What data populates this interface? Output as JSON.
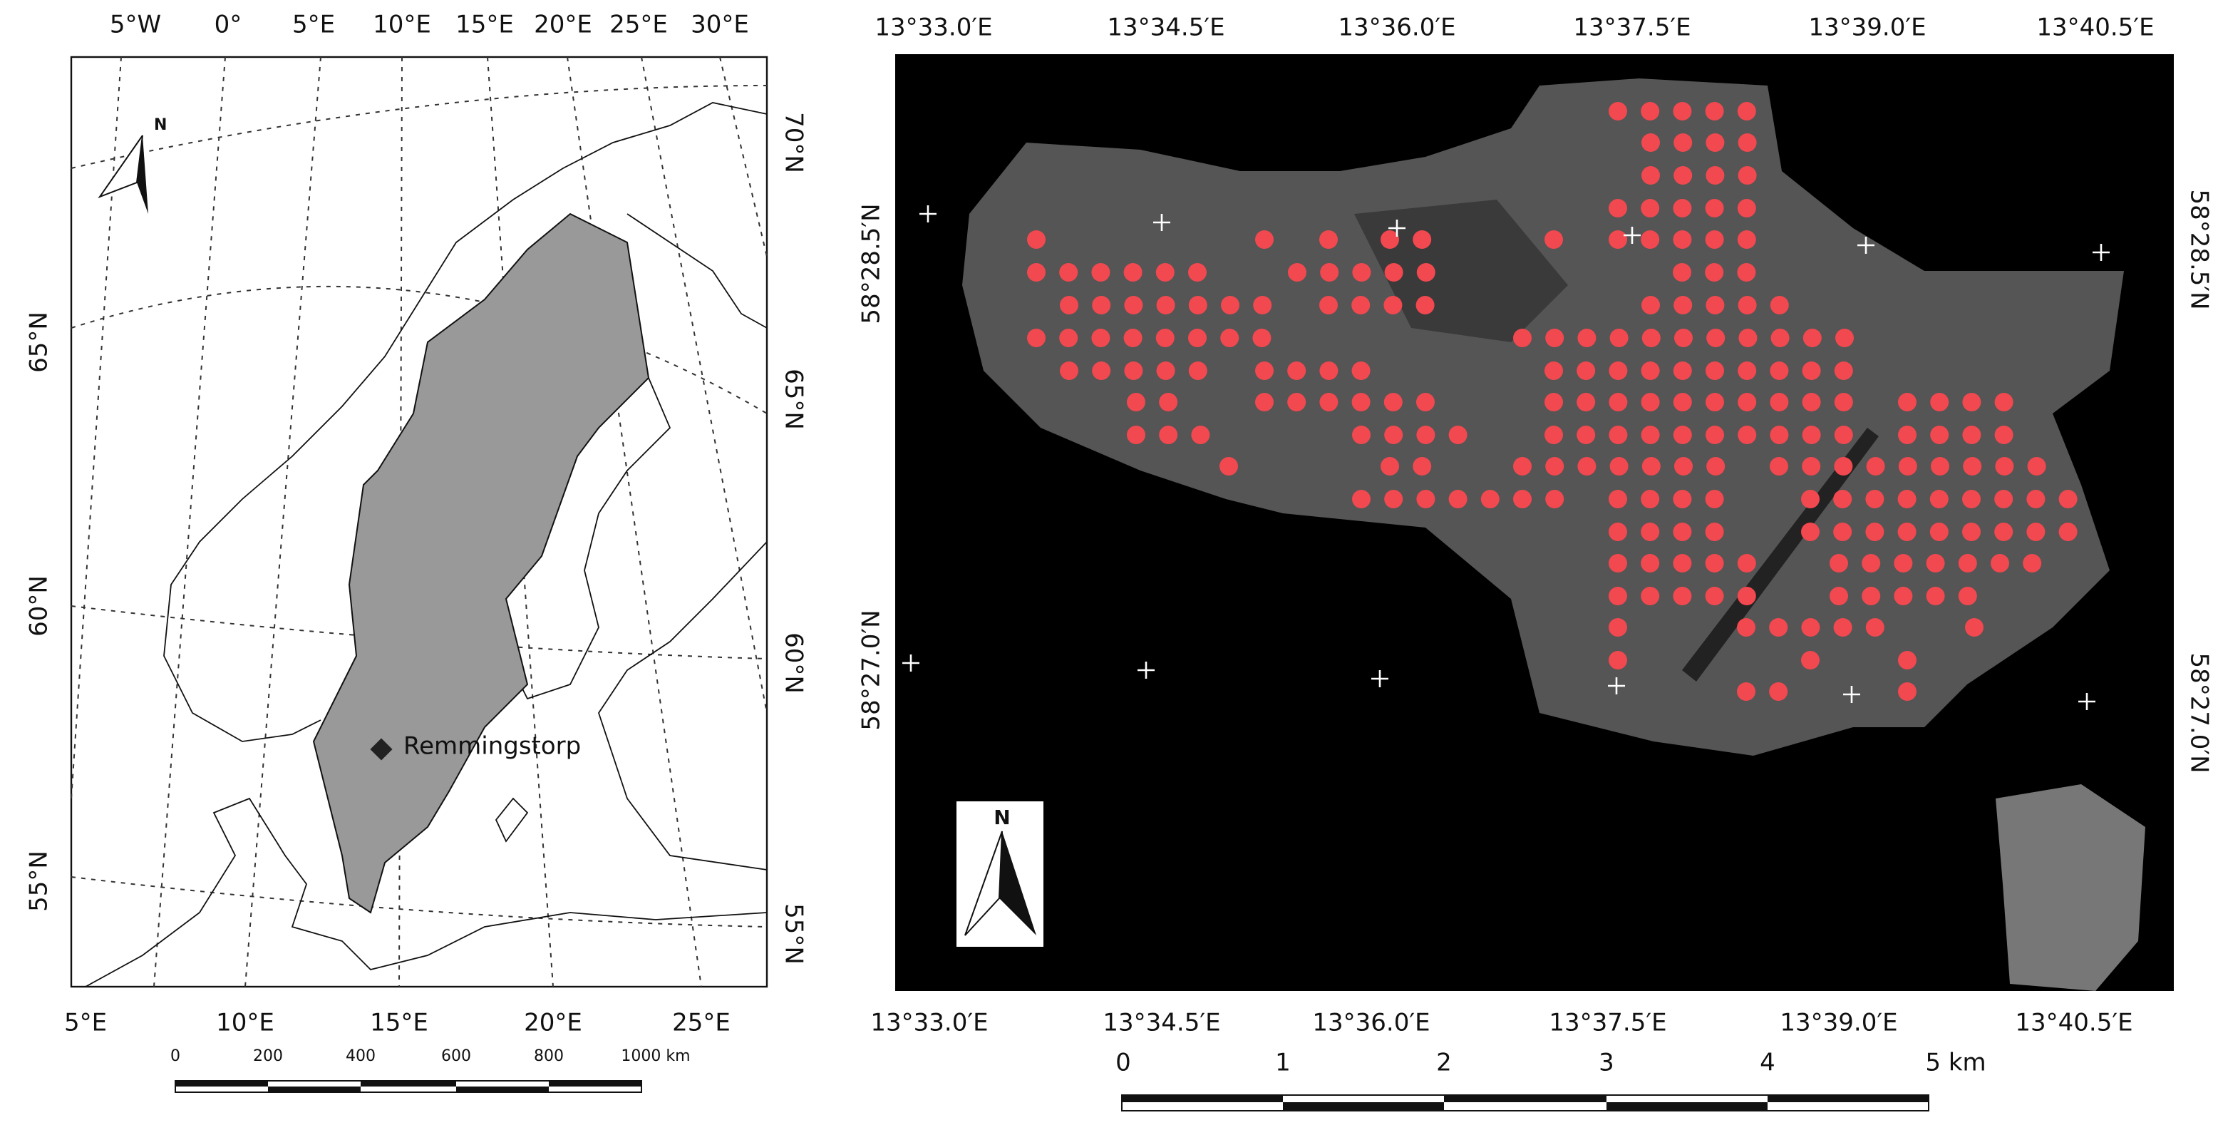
{
  "overview_map": {
    "top_labels": [
      "5°W",
      "0°",
      "5°E",
      "10°E",
      "15°E",
      "20°E",
      "25°E",
      "30°E"
    ],
    "bottom_labels": [
      "5°E",
      "10°E",
      "15°E",
      "20°E",
      "25°E"
    ],
    "left_labels": [
      "65°N",
      "60°N",
      "55°N"
    ],
    "right_labels": [
      "70°N",
      "65°N",
      "60°N",
      "55°N"
    ],
    "site_label": "Remmingstorp",
    "north_label": "N",
    "scale_labels": [
      "0",
      "200",
      "400",
      "600",
      "800",
      "1000 km"
    ]
  },
  "site_map": {
    "top_labels": [
      "13°33.0′E",
      "13°34.5′E",
      "13°36.0′E",
      "13°37.5′E",
      "13°39.0′E",
      "13°40.5′E"
    ],
    "bottom_labels": [
      "13°33.0′E",
      "13°34.5′E",
      "13°36.0′E",
      "13°37.5′E",
      "13°39.0′E",
      "13°40.5′E"
    ],
    "left_labels": [
      "58°28.5′N",
      "58°27.0′N"
    ],
    "right_labels": [
      "58°28.5′N",
      "58°27.0′N"
    ],
    "north_label": "N",
    "scale_labels": [
      "0",
      "1",
      "2",
      "3",
      "4",
      "5 km"
    ]
  }
}
